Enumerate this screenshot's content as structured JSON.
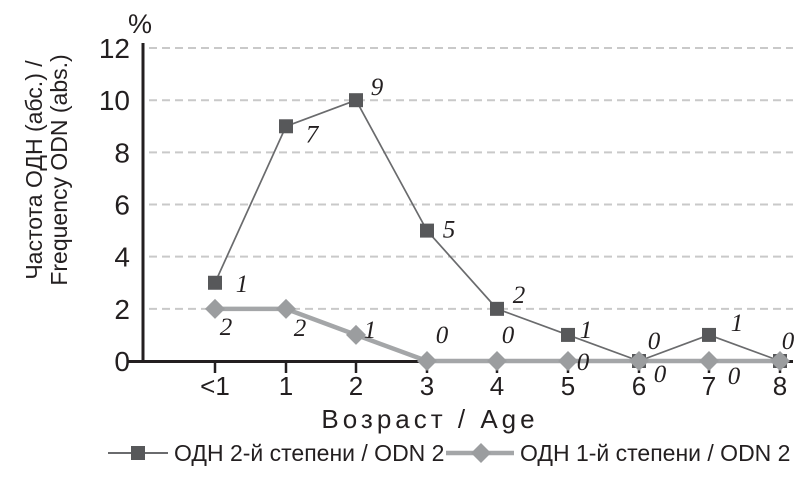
{
  "figure": {
    "y_unit": "%",
    "y_axis_title_line1": "Частота ОДН (абс.) /",
    "y_axis_title_line2": "Frequency ODN (abs.)",
    "x_axis_title": "Возраст / Age"
  },
  "chart_data": {
    "type": "line",
    "title": "",
    "xlabel": "Возраст / Age",
    "ylabel": "Частота ОДН (абс.) / Frequency ODN (abs.)",
    "y_unit_label": "%",
    "categories": [
      "<1",
      "1",
      "2",
      "3",
      "4",
      "5",
      "6",
      "7",
      "8"
    ],
    "yticks": [
      0,
      2,
      4,
      6,
      8,
      10,
      12
    ],
    "ylim": [
      0,
      12
    ],
    "grid": "horizontal-dashed",
    "legend_position": "bottom",
    "colors": {
      "square_marker": "#57585a",
      "square_line": "#6a6b6d",
      "diamond_marker": "#9b9d9f",
      "diamond_line": "#a4a6a8",
      "gridline": "#c9c9c9",
      "axis": "#231f20",
      "text": "#231f20"
    },
    "series": [
      {
        "name": "ОДН 2-й степени / ODN 2",
        "marker": "square",
        "values": [
          3,
          9,
          10,
          5,
          2,
          1,
          0,
          1,
          0
        ],
        "point_labels": [
          "1",
          "7",
          "9",
          "5",
          "2",
          "1",
          "0",
          "1",
          "0"
        ]
      },
      {
        "name": "ОДН 1-й степени / ODN 2",
        "marker": "diamond",
        "values": [
          2,
          2,
          1,
          0,
          0,
          0,
          0,
          0,
          0
        ],
        "point_labels": [
          "2",
          "2",
          "1",
          "0",
          "0",
          "0",
          "0",
          "0",
          ""
        ]
      }
    ]
  }
}
